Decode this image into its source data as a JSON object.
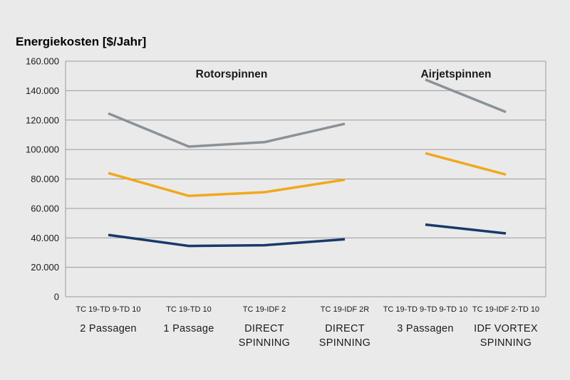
{
  "chart_data": {
    "type": "line",
    "ylabel": "Energiekosten [$/Jahr]",
    "ylim": [
      0,
      160000
    ],
    "yticks": [
      {
        "value": 0,
        "label": "0"
      },
      {
        "value": 20000,
        "label": "20.000"
      },
      {
        "value": 40000,
        "label": "40.000"
      },
      {
        "value": 60000,
        "label": "60.000"
      },
      {
        "value": 80000,
        "label": "80.000"
      },
      {
        "value": 100000,
        "label": "100.000"
      },
      {
        "value": 120000,
        "label": "120.000"
      },
      {
        "value": 140000,
        "label": "140.000"
      },
      {
        "value": 160000,
        "label": "160.000"
      }
    ],
    "grid": true,
    "categories": [
      {
        "top": "TC 19-TD 9-TD 10",
        "bottom": [
          "2 Passagen"
        ]
      },
      {
        "top": "TC 19-TD 10",
        "bottom": [
          "1 Passage"
        ]
      },
      {
        "top": "TC 19-IDF 2",
        "bottom": [
          "DIRECT",
          "SPINNING"
        ]
      },
      {
        "top": "TC 19-IDF 2R",
        "bottom": [
          "DIRECT",
          "SPINNING"
        ]
      },
      {
        "top": "TC 19-TD 9-TD 9-TD 10",
        "bottom": [
          "3 Passagen"
        ]
      },
      {
        "top": "TC 19-IDF 2-TD 10",
        "bottom": [
          "IDF VORTEX",
          "SPINNING"
        ]
      }
    ],
    "groups": [
      {
        "label": "Rotorspinnen",
        "categories": [
          0,
          1,
          2,
          3
        ]
      },
      {
        "label": "Airjetspinnen",
        "categories": [
          4,
          5
        ]
      }
    ],
    "series": [
      {
        "color": "#8a9298",
        "segments": [
          [
            0,
            1,
            2,
            3
          ],
          [
            4,
            5
          ]
        ],
        "values": [
          124500,
          102000,
          105000,
          117500,
          147500,
          125500
        ]
      },
      {
        "color": "#f0a81c",
        "segments": [
          [
            0,
            1,
            2,
            3
          ],
          [
            4,
            5
          ]
        ],
        "values": [
          84000,
          68500,
          71000,
          79500,
          97500,
          83000
        ]
      },
      {
        "color": "#173a6b",
        "segments": [
          [
            0,
            1,
            2,
            3
          ],
          [
            4,
            5
          ]
        ],
        "values": [
          42000,
          34500,
          35000,
          39000,
          49000,
          43000
        ]
      }
    ]
  }
}
